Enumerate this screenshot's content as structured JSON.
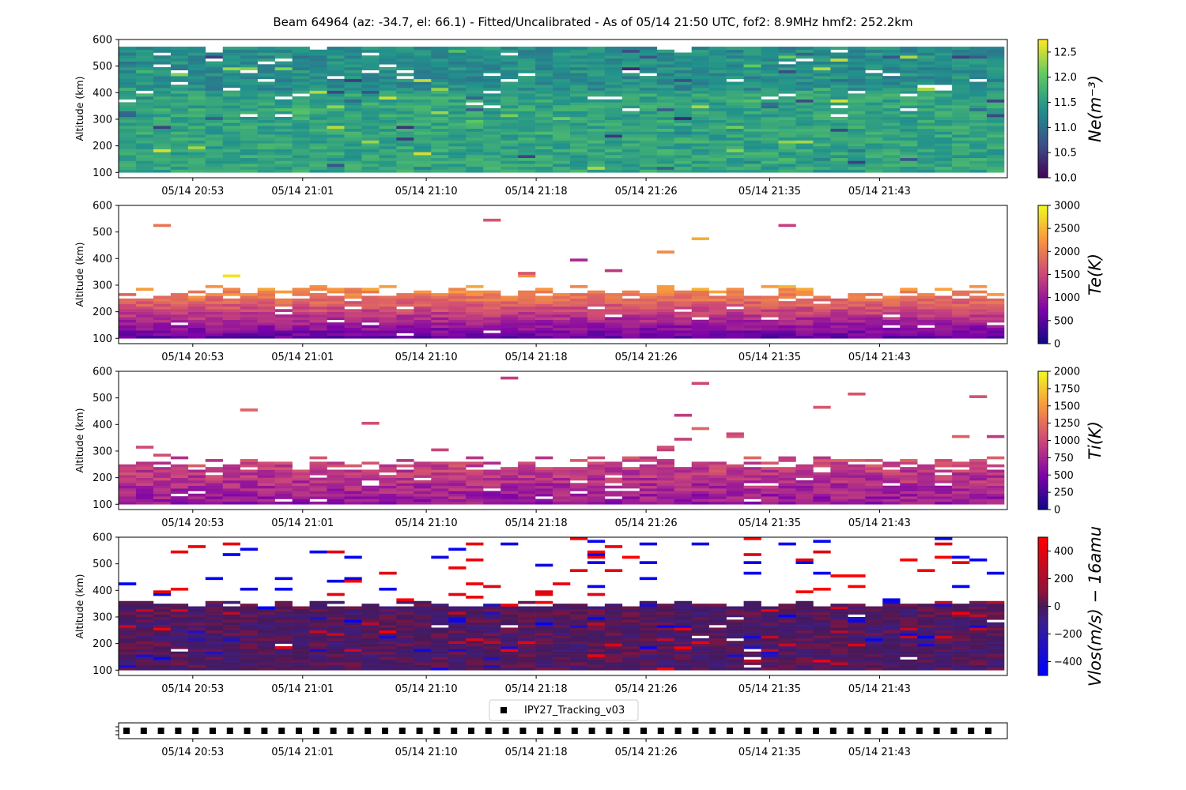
{
  "title": "Beam 64964 (az: -34.7, el: 66.1) - Fitted/Uncalibrated - As of 05/14 21:50 UTC, fof2: 8.9MHz  hmf2: 252.2km",
  "time_ticks": [
    "05/14 20:53",
    "05/14 21:01",
    "05/14 21:10",
    "05/14 21:18",
    "05/14 21:26",
    "05/14 21:35",
    "05/14 21:43"
  ],
  "legend_label": "IPY27_Tracking_v03",
  "chart_data": [
    {
      "type": "heatmap",
      "ylabel": "Altitude (km)",
      "ylim": [
        80,
        600
      ],
      "yticks": [
        100,
        200,
        300,
        400,
        500,
        600
      ],
      "colormap": "viridis",
      "colorbar": {
        "label": "Ne(m⁻³)",
        "range": [
          10.0,
          12.75
        ],
        "ticks": [
          "10.0",
          "10.5",
          "11.0",
          "11.5",
          "12.0",
          "12.5"
        ],
        "tick_values": [
          10.0,
          10.5,
          11.0,
          11.5,
          12.0,
          12.5
        ]
      },
      "range_km": [
        100,
        570
      ],
      "typical_value": "11.3–11.9 log10 Ne across 100–570 km"
    },
    {
      "type": "heatmap",
      "ylabel": "Altitude (km)",
      "ylim": [
        80,
        600
      ],
      "yticks": [
        100,
        200,
        300,
        400,
        500,
        600
      ],
      "colormap": "plasma",
      "colorbar": {
        "label": "Te(K)",
        "range": [
          0,
          3000
        ],
        "ticks": [
          "0",
          "500",
          "1000",
          "1500",
          "2000",
          "2500",
          "3000"
        ],
        "tick_values": [
          0,
          500,
          1000,
          1500,
          2000,
          2500,
          3000
        ]
      },
      "range_km": [
        100,
        300
      ],
      "typical_value": "~800 K near 100 km rising to ~2500 K near 250 km"
    },
    {
      "type": "heatmap",
      "ylabel": "Altitude (km)",
      "ylim": [
        80,
        600
      ],
      "yticks": [
        100,
        200,
        300,
        400,
        500,
        600
      ],
      "colormap": "plasma",
      "colorbar": {
        "label": "Ti(K)",
        "range": [
          0,
          2000
        ],
        "ticks": [
          "0",
          "250",
          "500",
          "750",
          "1000",
          "1250",
          "1500",
          "1750",
          "2000"
        ],
        "tick_values": [
          0,
          250,
          500,
          750,
          1000,
          1250,
          1500,
          1750,
          2000
        ]
      },
      "range_km": [
        100,
        290
      ],
      "typical_value": "~600–1100 K"
    },
    {
      "type": "heatmap",
      "ylabel": "Altitude (km)",
      "ylim": [
        80,
        600
      ],
      "yticks": [
        100,
        200,
        300,
        400,
        500,
        600
      ],
      "colormap": "bwr",
      "colorbar": {
        "label": "Vlos(m/s) − 16amu",
        "range": [
          -500,
          500
        ],
        "ticks": [
          "−400",
          "−200",
          "0",
          "200",
          "400"
        ],
        "tick_values": [
          -400,
          -200,
          0,
          200,
          400
        ]
      },
      "range_km": [
        100,
        360
      ],
      "typical_value": "−100 to +100 m/s, scattered ±500 m/s at high altitude"
    }
  ]
}
